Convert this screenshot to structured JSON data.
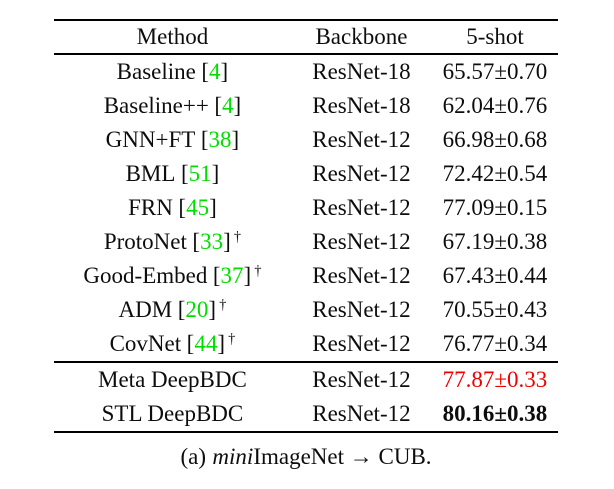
{
  "table": {
    "headers": [
      "Method",
      "Backbone",
      "5-shot"
    ],
    "cite_brackets": [
      "[",
      "]"
    ],
    "rows": [
      {
        "method": "Baseline",
        "cite": "4",
        "dagger": "",
        "backbone": "ResNet-18",
        "score": "65.57±0.70",
        "score_style": "normal",
        "section": "prior"
      },
      {
        "method": "Baseline++",
        "cite": "4",
        "dagger": "",
        "backbone": "ResNet-18",
        "score": "62.04±0.76",
        "score_style": "normal",
        "section": "prior"
      },
      {
        "method": "GNN+FT",
        "cite": "38",
        "dagger": "",
        "backbone": "ResNet-12",
        "score": "66.98±0.68",
        "score_style": "normal",
        "section": "prior"
      },
      {
        "method": "BML",
        "cite": "51",
        "dagger": "",
        "backbone": "ResNet-12",
        "score": "72.42±0.54",
        "score_style": "normal",
        "section": "prior"
      },
      {
        "method": "FRN",
        "cite": "45",
        "dagger": "",
        "backbone": "ResNet-12",
        "score": "77.09±0.15",
        "score_style": "normal",
        "section": "prior"
      },
      {
        "method": "ProtoNet",
        "cite": "33",
        "dagger": "†",
        "backbone": "ResNet-12",
        "score": "67.19±0.38",
        "score_style": "normal",
        "section": "prior"
      },
      {
        "method": "Good-Embed",
        "cite": "37",
        "dagger": "†",
        "backbone": "ResNet-12",
        "score": "67.43±0.44",
        "score_style": "normal",
        "section": "prior"
      },
      {
        "method": "ADM",
        "cite": "20",
        "dagger": "†",
        "backbone": "ResNet-12",
        "score": "70.55±0.43",
        "score_style": "normal",
        "section": "prior"
      },
      {
        "method": "CovNet",
        "cite": "44",
        "dagger": "†",
        "backbone": "ResNet-12",
        "score": "76.77±0.34",
        "score_style": "normal",
        "section": "prior"
      },
      {
        "method": "Meta DeepBDC",
        "cite": "",
        "dagger": "",
        "backbone": "ResNet-12",
        "score": "77.87±0.33",
        "score_style": "red",
        "section": "ours"
      },
      {
        "method": "STL DeepBDC",
        "cite": "",
        "dagger": "",
        "backbone": "ResNet-12",
        "score": "80.16±0.38",
        "score_style": "bold",
        "section": "ours"
      }
    ]
  },
  "caption": {
    "prefix": "(a)",
    "italic_word": "mini",
    "suffix": "ImageNet → CUB."
  },
  "colors": {
    "citation_green": "#00dd00",
    "highlight_red": "#ee0000",
    "text": "#0d0d0d"
  }
}
